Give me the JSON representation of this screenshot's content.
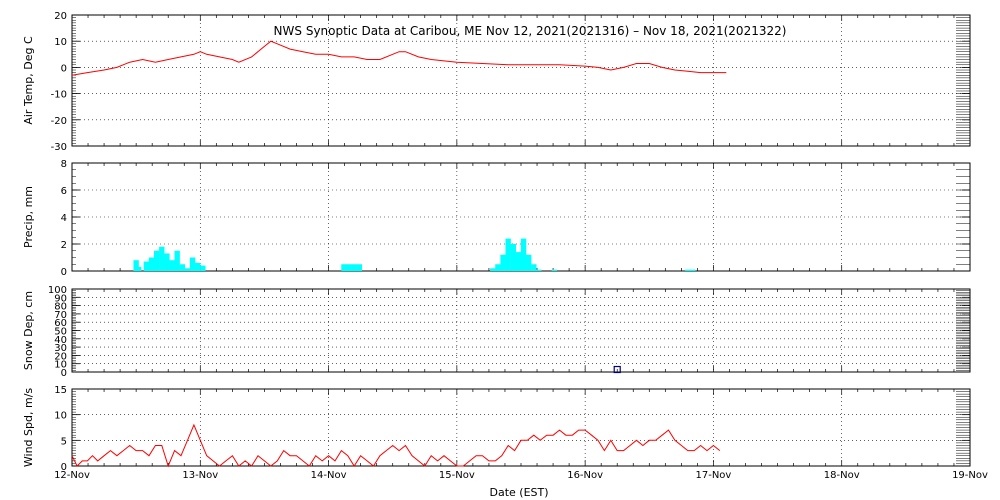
{
  "title": "NWS Synoptic Data at Caribou, ME    Nov 12, 2021(2021316) – Nov 18, 2021(2021322)",
  "xlabel": "Date (EST)",
  "x_tick_labels": [
    "12-Nov",
    "13-Nov",
    "14-Nov",
    "15-Nov",
    "16-Nov",
    "17-Nov",
    "18-Nov",
    "19-Nov"
  ],
  "colors": {
    "temp": "#ff0000",
    "precip": "#00ffff",
    "snow": "#000080",
    "wind": "#ff0000",
    "grid": "#000000"
  },
  "chart_data": [
    {
      "type": "line",
      "ylabel": "Air Temp, Deg C",
      "ylim": [
        -30,
        20
      ],
      "yticks": [
        -30,
        -20,
        -10,
        0,
        10,
        20
      ],
      "xlim": [
        0,
        7
      ],
      "x_unit": "days since 12-Nov 00:00 EST",
      "grid": true,
      "series": [
        {
          "name": "Air Temp",
          "x": [
            0,
            0.12,
            0.25,
            0.35,
            0.45,
            0.55,
            0.65,
            0.75,
            0.85,
            0.95,
            1.0,
            1.05,
            1.15,
            1.25,
            1.3,
            1.4,
            1.5,
            1.55,
            1.6,
            1.7,
            1.8,
            1.9,
            2.0,
            2.1,
            2.2,
            2.3,
            2.4,
            2.5,
            2.55,
            2.6,
            2.7,
            2.8,
            3.0,
            3.2,
            3.4,
            3.6,
            3.8,
            4.0,
            4.1,
            4.2,
            4.3,
            4.4,
            4.5,
            4.6,
            4.7,
            4.8,
            4.9,
            5.0,
            5.1
          ],
          "y": [
            -3,
            -2,
            -1,
            0,
            2,
            3,
            2,
            3,
            4,
            5,
            6,
            5,
            4,
            3,
            2,
            4,
            8,
            10,
            9,
            7,
            6,
            5,
            5,
            4,
            4,
            3,
            3,
            5,
            6,
            6,
            4,
            3,
            2,
            1.5,
            1,
            1,
            1,
            0.5,
            0,
            -1,
            0,
            1.5,
            1.5,
            0,
            -1,
            -1.5,
            -2,
            -2,
            -2
          ]
        }
      ]
    },
    {
      "type": "bar",
      "ylabel": "Precip, mm",
      "ylim": [
        0,
        8
      ],
      "yticks": [
        0,
        2,
        4,
        6,
        8
      ],
      "xlim": [
        0,
        7
      ],
      "x_unit": "days since 12-Nov 00:00 EST",
      "grid": true,
      "bar_width_days": 0.0417,
      "series": [
        {
          "name": "Precip",
          "x": [
            0.5,
            0.52,
            0.58,
            0.62,
            0.66,
            0.7,
            0.74,
            0.78,
            0.82,
            0.86,
            0.9,
            0.94,
            0.98,
            1.02,
            2.12,
            2.16,
            2.2,
            2.24,
            3.28,
            3.32,
            3.36,
            3.4,
            3.44,
            3.48,
            3.52,
            3.56,
            3.6,
            3.64,
            3.76,
            4.8,
            4.84
          ],
          "values": [
            0.8,
            0.3,
            0.7,
            1.0,
            1.5,
            1.8,
            1.3,
            0.8,
            1.5,
            0.5,
            0.2,
            1.0,
            0.6,
            0.4,
            0.5,
            0.5,
            0.5,
            0.5,
            0.2,
            0.5,
            1.2,
            2.4,
            2.0,
            1.4,
            2.4,
            1.2,
            0.5,
            0.1,
            0.1,
            0.1,
            0.1
          ]
        }
      ]
    },
    {
      "type": "scatter",
      "ylabel": "Snow Dep, cm",
      "ylim": [
        0,
        100
      ],
      "yticks": [
        0,
        10,
        20,
        30,
        40,
        50,
        60,
        70,
        80,
        90,
        100
      ],
      "xlim": [
        0,
        7
      ],
      "x_unit": "days since 12-Nov 00:00 EST",
      "grid": true,
      "series": [
        {
          "name": "Snow Depth",
          "x": [
            4.25
          ],
          "y": [
            3
          ]
        }
      ]
    },
    {
      "type": "line",
      "ylabel": "Wind Spd, m/s",
      "ylim": [
        0,
        15
      ],
      "yticks": [
        0,
        5,
        10,
        15
      ],
      "xlim": [
        0,
        7
      ],
      "x_unit": "days since 12-Nov 00:00 EST",
      "grid": true,
      "series": [
        {
          "name": "Wind Speed",
          "x": [
            0,
            0.04,
            0.08,
            0.12,
            0.16,
            0.2,
            0.25,
            0.3,
            0.35,
            0.4,
            0.45,
            0.5,
            0.55,
            0.6,
            0.65,
            0.7,
            0.75,
            0.8,
            0.85,
            0.9,
            0.95,
            1.0,
            1.05,
            1.1,
            1.15,
            1.2,
            1.25,
            1.3,
            1.35,
            1.4,
            1.45,
            1.5,
            1.55,
            1.6,
            1.65,
            1.7,
            1.75,
            1.8,
            1.85,
            1.9,
            1.95,
            2.0,
            2.05,
            2.1,
            2.15,
            2.2,
            2.25,
            2.3,
            2.35,
            2.4,
            2.45,
            2.5,
            2.55,
            2.6,
            2.65,
            2.7,
            2.75,
            2.8,
            2.85,
            2.9,
            2.95,
            3.0,
            3.05,
            3.1,
            3.15,
            3.2,
            3.25,
            3.3,
            3.35,
            3.4,
            3.45,
            3.5,
            3.55,
            3.6,
            3.65,
            3.7,
            3.75,
            3.8,
            3.85,
            3.9,
            3.95,
            4.0,
            4.05,
            4.1,
            4.15,
            4.2,
            4.25,
            4.3,
            4.35,
            4.4,
            4.45,
            4.5,
            4.55,
            4.6,
            4.65,
            4.7,
            4.75,
            4.8,
            4.85,
            4.9,
            4.95,
            5.0,
            5.05
          ],
          "y": [
            2,
            0,
            1,
            1,
            2,
            1,
            2,
            3,
            2,
            3,
            4,
            3,
            3,
            2,
            4,
            4,
            0,
            3,
            2,
            5,
            8,
            5,
            2,
            1,
            0,
            1,
            2,
            0,
            1,
            0,
            2,
            1,
            0,
            1,
            3,
            2,
            2,
            1,
            0,
            2,
            1,
            2,
            1,
            3,
            2,
            0,
            2,
            1,
            0,
            2,
            3,
            4,
            3,
            4,
            2,
            1,
            0,
            2,
            1,
            2,
            1,
            0,
            0,
            1,
            2,
            2,
            1,
            1,
            2,
            4,
            3,
            5,
            5,
            6,
            5,
            6,
            6,
            7,
            6,
            6,
            7,
            7,
            6,
            5,
            3,
            5,
            3,
            3,
            4,
            5,
            4,
            5,
            5,
            6,
            7,
            5,
            4,
            3,
            3,
            4,
            3,
            4,
            3
          ]
        }
      ]
    }
  ]
}
